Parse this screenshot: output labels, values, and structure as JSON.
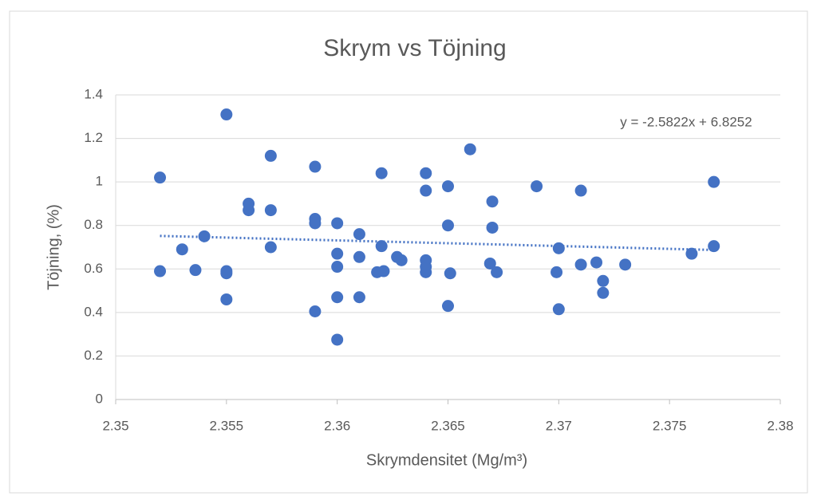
{
  "chart_data": {
    "type": "scatter",
    "title": "Skrym vs Töjning",
    "x_label": "Skrymdensitet (Mg/m³)",
    "y_label": "Töjning, (%)",
    "color": "#4472c4",
    "x": [
      2.352,
      2.352,
      2.353,
      2.3536,
      2.354,
      2.355,
      2.355,
      2.355,
      2.355,
      2.356,
      2.356,
      2.357,
      2.357,
      2.357,
      2.359,
      2.359,
      2.359,
      2.359,
      2.36,
      2.36,
      2.36,
      2.36,
      2.36,
      2.361,
      2.361,
      2.361,
      2.362,
      2.362,
      2.3618,
      2.3621,
      2.3627,
      2.3629,
      2.364,
      2.364,
      2.364,
      2.364,
      2.364,
      2.365,
      2.365,
      2.3651,
      2.365,
      2.366,
      2.367,
      2.367,
      2.3669,
      2.3672,
      2.369,
      2.37,
      2.3699,
      2.37,
      2.371,
      2.371,
      2.3717,
      2.372,
      2.372,
      2.373,
      2.376,
      2.377,
      2.377
    ],
    "values": [
      1.02,
      0.59,
      0.69,
      0.595,
      0.75,
      1.31,
      0.59,
      0.58,
      0.46,
      0.9,
      0.87,
      1.12,
      0.87,
      0.7,
      1.07,
      0.83,
      0.81,
      0.405,
      0.81,
      0.67,
      0.61,
      0.47,
      0.275,
      0.76,
      0.655,
      0.47,
      1.04,
      0.705,
      0.585,
      0.59,
      0.655,
      0.64,
      1.04,
      0.96,
      0.64,
      0.61,
      0.585,
      0.98,
      0.8,
      0.58,
      0.43,
      1.15,
      0.91,
      0.79,
      0.625,
      0.585,
      0.98,
      0.695,
      0.585,
      0.415,
      0.96,
      0.62,
      0.63,
      0.545,
      0.49,
      0.62,
      0.67,
      1.0,
      0.705
    ],
    "xlim": [
      2.35,
      2.38
    ],
    "xticks": [
      2.35,
      2.355,
      2.36,
      2.365,
      2.37,
      2.375,
      2.38
    ],
    "ylim": [
      0,
      1.4
    ],
    "yticks": [
      0,
      0.2,
      0.4,
      0.6,
      0.8,
      1,
      1.2,
      1.4
    ],
    "grid": true,
    "trendline": {
      "label": "y = -2.5822x + 6.8252",
      "slope": -2.5822,
      "intercept": 6.8252
    }
  }
}
